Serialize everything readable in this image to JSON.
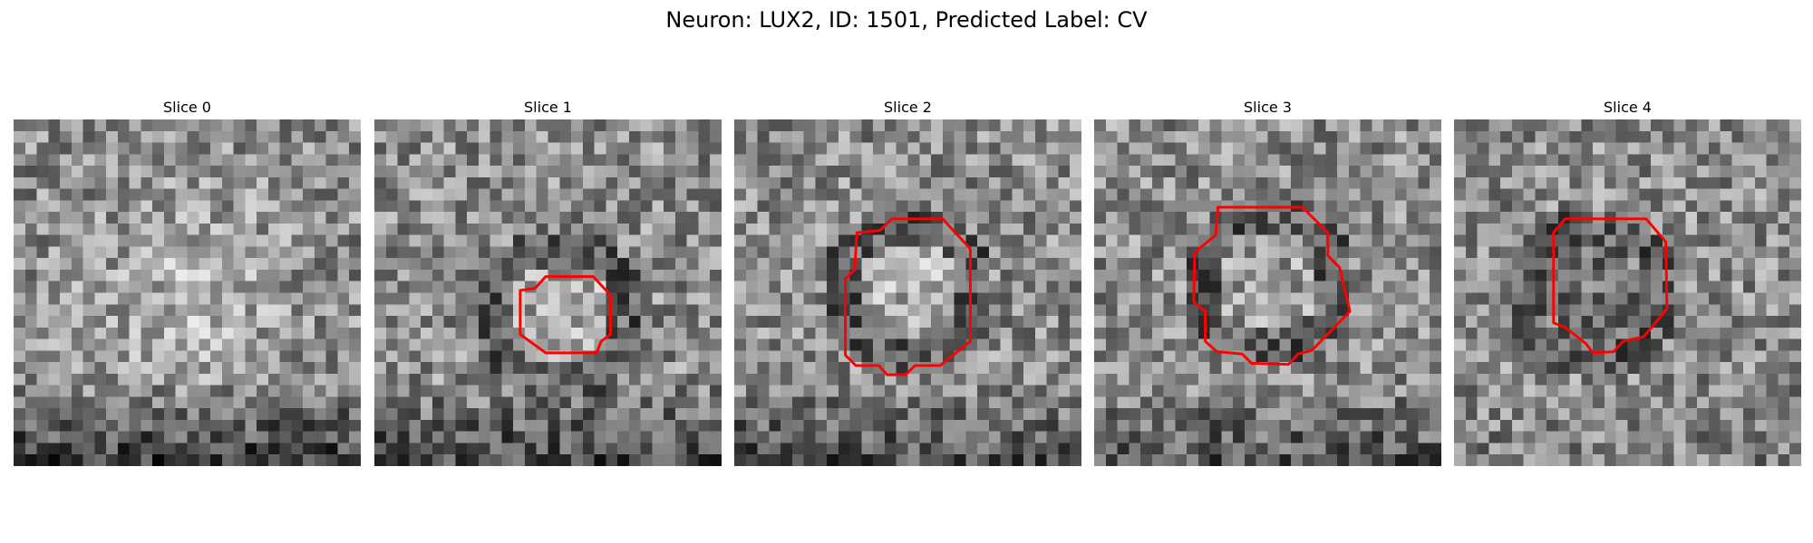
{
  "figure": {
    "title": "Neuron: LUX2, ID: 1501, Predicted Label: CV",
    "grid_size": 30,
    "colormap": "gray",
    "contour_color": "#ff0000"
  },
  "panels": [
    {
      "title": "Slice 0",
      "seed": 11,
      "center": [
        15,
        15
      ],
      "dark_ring": false,
      "blob_brightness": 0.15,
      "bottom_dark": 0.35,
      "has_contour": false
    },
    {
      "title": "Slice 1",
      "seed": 23,
      "center": [
        16,
        17
      ],
      "dark_ring": true,
      "blob_brightness": 0.1,
      "bottom_dark": 0.3,
      "has_contour": true
    },
    {
      "title": "Slice 2",
      "seed": 37,
      "center": [
        15,
        15
      ],
      "dark_ring": true,
      "blob_brightness": 0.12,
      "bottom_dark": 0.28,
      "has_contour": true
    },
    {
      "title": "Slice 3",
      "seed": 41,
      "center": [
        15,
        14
      ],
      "dark_ring": true,
      "blob_brightness": 0.05,
      "bottom_dark": 0.25,
      "has_contour": true
    },
    {
      "title": "Slice 4",
      "seed": 53,
      "center": [
        12,
        15
      ],
      "dark_ring": true,
      "blob_brightness": -0.1,
      "bottom_dark": 0.05,
      "has_contour": true
    }
  ]
}
